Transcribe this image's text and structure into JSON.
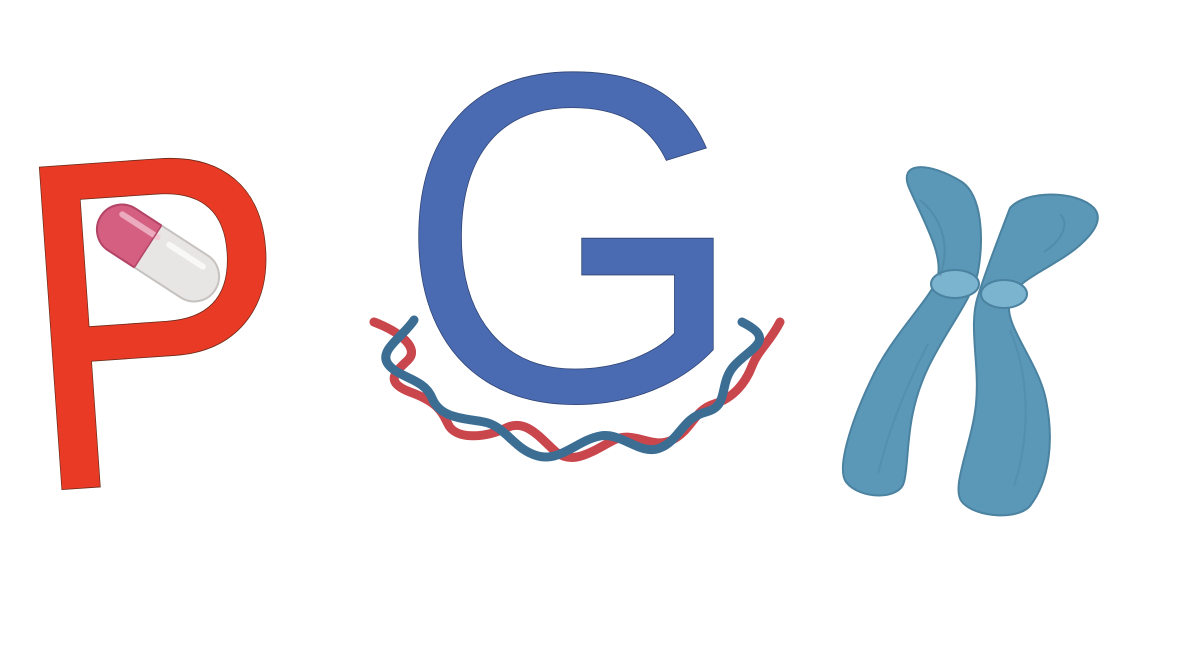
{
  "logo": {
    "letters": {
      "p": "P",
      "g": "G"
    },
    "colors": {
      "p": "#E83A24",
      "g": "#4A6AB1",
      "capsule_pink": "#D45F80",
      "capsule_white": "#E8E6E4",
      "dna_red": "#C9464C",
      "dna_blue": "#3C6E94",
      "chromosome": "#5B97B6"
    },
    "icons": [
      "capsule-icon",
      "dna-helix-icon",
      "chromosome-icon"
    ]
  }
}
